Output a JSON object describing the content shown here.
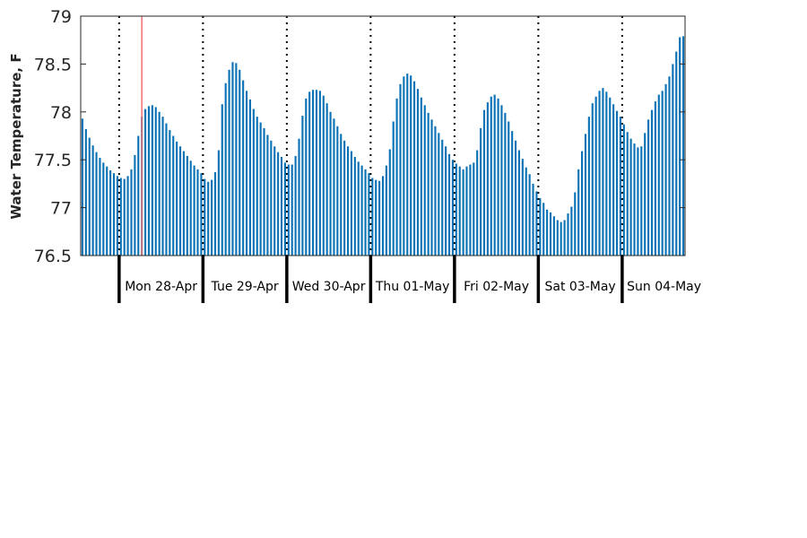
{
  "chart_data": {
    "type": "bar",
    "title": "",
    "ylabel": "Water Temperature, F",
    "ylim": [
      76.5,
      79
    ],
    "yticks": [
      76.5,
      77,
      77.5,
      78,
      78.5,
      79
    ],
    "ytick_labels": [
      "76.5",
      "77",
      "77.5",
      "78",
      "78.5",
      "79"
    ],
    "day_labels": [
      "Mon 28-Apr",
      "Tue 29-Apr",
      "Wed 30-Apr",
      "Thu 01-May",
      "Fri 02-May",
      "Sat 03-May",
      "Sun 04-May"
    ],
    "hours_before_first_midnight": 11,
    "now_marker_hour": 17.5,
    "bar_color": "#0b72b5",
    "now_line_color": "#f07070",
    "grid": false,
    "values": [
      77.93,
      77.82,
      77.73,
      77.65,
      77.58,
      77.52,
      77.47,
      77.43,
      77.39,
      77.36,
      77.33,
      77.31,
      77.3,
      77.33,
      77.4,
      77.55,
      77.75,
      77.95,
      78.03,
      78.06,
      78.07,
      78.05,
      78.0,
      77.95,
      77.88,
      77.81,
      77.75,
      77.69,
      77.64,
      77.59,
      77.54,
      77.49,
      77.44,
      77.4,
      77.36,
      77.3,
      77.27,
      77.29,
      77.37,
      77.6,
      78.08,
      78.3,
      78.44,
      78.52,
      78.51,
      78.44,
      78.33,
      78.22,
      78.13,
      78.03,
      77.95,
      77.89,
      77.83,
      77.76,
      77.7,
      77.64,
      77.58,
      77.53,
      77.47,
      77.45,
      77.45,
      77.54,
      77.72,
      77.96,
      78.14,
      78.21,
      78.23,
      78.23,
      78.22,
      78.17,
      78.09,
      78.0,
      77.93,
      77.85,
      77.77,
      77.7,
      77.64,
      77.59,
      77.53,
      77.48,
      77.44,
      77.4,
      77.36,
      77.31,
      77.29,
      77.28,
      77.33,
      77.44,
      77.61,
      77.9,
      78.14,
      78.29,
      78.37,
      78.4,
      78.38,
      78.32,
      78.24,
      78.15,
      78.07,
      77.99,
      77.92,
      77.85,
      77.78,
      77.71,
      77.64,
      77.56,
      77.5,
      77.46,
      77.43,
      77.4,
      77.43,
      77.45,
      77.47,
      77.6,
      77.83,
      78.02,
      78.1,
      78.16,
      78.18,
      78.14,
      78.07,
      77.99,
      77.9,
      77.8,
      77.7,
      77.6,
      77.51,
      77.42,
      77.35,
      77.25,
      77.17,
      77.1,
      77.05,
      76.98,
      76.95,
      76.91,
      76.87,
      76.85,
      76.87,
      76.94,
      77.01,
      77.16,
      77.4,
      77.59,
      77.77,
      77.95,
      78.09,
      78.16,
      78.22,
      78.25,
      78.21,
      78.15,
      78.08,
      78.01,
      77.95,
      77.87,
      77.79,
      77.72,
      77.67,
      77.63,
      77.64,
      77.78,
      77.92,
      78.02,
      78.11,
      78.18,
      78.22,
      78.29,
      78.37,
      78.5,
      78.63,
      78.78,
      78.79
    ]
  }
}
